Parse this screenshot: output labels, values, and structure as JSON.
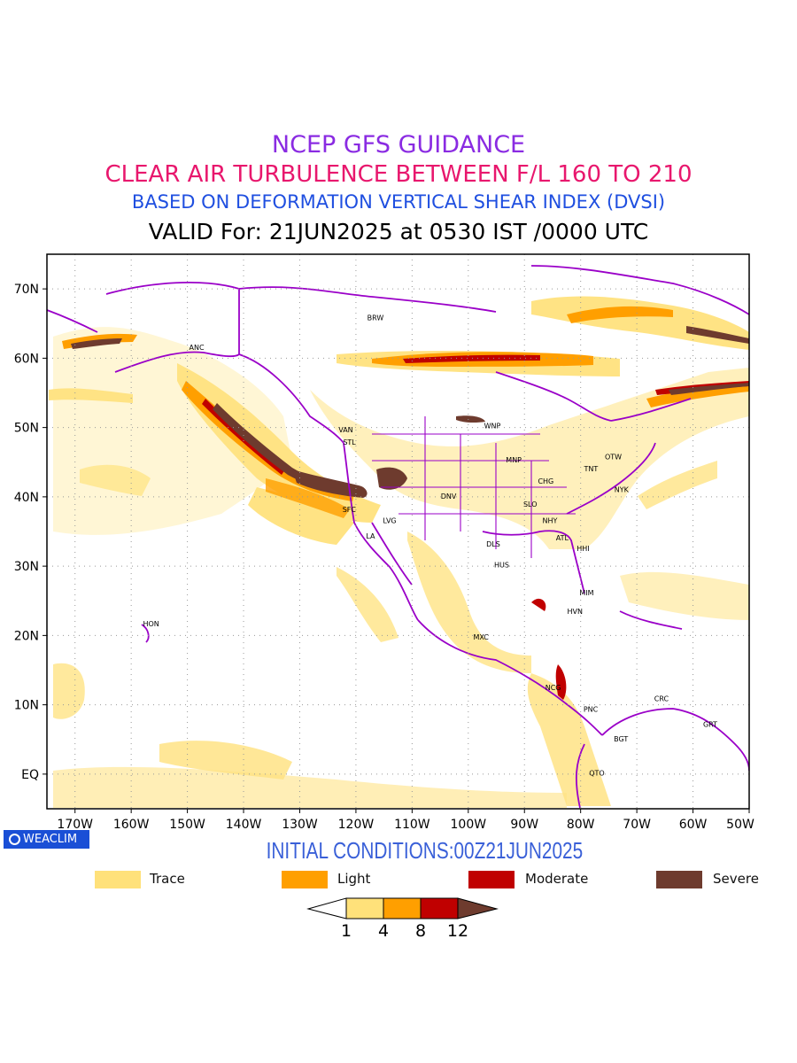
{
  "titles": [
    {
      "text": "NCEP GFS GUIDANCE",
      "color": "#8a2be2"
    },
    {
      "text": "CLEAR AIR TURBULENCE BETWEEN F/L 160 TO 210",
      "color": "#e8176d"
    },
    {
      "text": "BASED ON DEFORMATION VERTICAL SHEAR INDEX (DVSI)",
      "color": "#1f4fe0"
    },
    {
      "text": "VALID For: 21JUN2025 at 0530 IST /0000 UTC",
      "color": "#000000"
    }
  ],
  "map": {
    "lon_range": [
      -175,
      -50
    ],
    "lat_range": [
      -5,
      75
    ],
    "lat_ticks": [
      "70N",
      "60N",
      "50N",
      "40N",
      "30N",
      "20N",
      "10N",
      "EQ"
    ],
    "lat_tick_values": [
      70,
      60,
      50,
      40,
      30,
      20,
      10,
      0
    ],
    "lon_ticks": [
      "170W",
      "160W",
      "150W",
      "140W",
      "130W",
      "120W",
      "110W",
      "100W",
      "90W",
      "80W",
      "70W",
      "60W",
      "50W"
    ],
    "lon_tick_values": [
      -170,
      -160,
      -150,
      -140,
      -130,
      -120,
      -110,
      -100,
      -90,
      -80,
      -70,
      -60,
      -50
    ],
    "grid": true,
    "coast_color": "#9a00c8",
    "stations": [
      {
        "code": "BRW",
        "lon": -118,
        "lat": 65.5
      },
      {
        "code": "ANC",
        "lon": -149.7,
        "lat": 61.2
      },
      {
        "code": "VAN",
        "lon": -123.1,
        "lat": 49.3
      },
      {
        "code": "STL",
        "lon": -122.3,
        "lat": 47.5
      },
      {
        "code": "WNP",
        "lon": -97.2,
        "lat": 49.9
      },
      {
        "code": "MNP",
        "lon": -93.3,
        "lat": 45
      },
      {
        "code": "TNT",
        "lon": -79.4,
        "lat": 43.7
      },
      {
        "code": "OTW",
        "lon": -75.7,
        "lat": 45.4
      },
      {
        "code": "CHG",
        "lon": -87.6,
        "lat": 41.9
      },
      {
        "code": "NYK",
        "lon": -74,
        "lat": 40.7
      },
      {
        "code": "DNV",
        "lon": -104.9,
        "lat": 39.7
      },
      {
        "code": "SFC",
        "lon": -122.4,
        "lat": 37.8
      },
      {
        "code": "SLO",
        "lon": -90.2,
        "lat": 38.6
      },
      {
        "code": "LVG",
        "lon": -115.2,
        "lat": 36.2
      },
      {
        "code": "NHY",
        "lon": -86.8,
        "lat": 36.2
      },
      {
        "code": "LA",
        "lon": -118.2,
        "lat": 34
      },
      {
        "code": "ATL",
        "lon": -84.4,
        "lat": 33.7
      },
      {
        "code": "DLS",
        "lon": -96.8,
        "lat": 32.8
      },
      {
        "code": "HHI",
        "lon": -80.7,
        "lat": 32.2
      },
      {
        "code": "HUS",
        "lon": -95.4,
        "lat": 29.8
      },
      {
        "code": "MIM",
        "lon": -80.2,
        "lat": 25.8
      },
      {
        "code": "HVN",
        "lon": -82.4,
        "lat": 23.1
      },
      {
        "code": "HON",
        "lon": -157.9,
        "lat": 21.3
      },
      {
        "code": "MXC",
        "lon": -99.1,
        "lat": 19.4
      },
      {
        "code": "NCG",
        "lon": -86.3,
        "lat": 12.1
      },
      {
        "code": "CRC",
        "lon": -66.9,
        "lat": 10.5
      },
      {
        "code": "PNC",
        "lon": -79.5,
        "lat": 9
      },
      {
        "code": "GRT",
        "lon": -58.2,
        "lat": 6.8
      },
      {
        "code": "BGT",
        "lon": -74.1,
        "lat": 4.7
      },
      {
        "code": "QTO",
        "lon": -78.5,
        "lat": -0.2
      }
    ]
  },
  "initial_conditions": {
    "text": "INITIAL CONDITIONS:00Z21JUN2025",
    "color": "#3a60d8"
  },
  "logo": {
    "text": "WEACLIM"
  },
  "legend": [
    {
      "label": "Trace",
      "color": "#ffe17a"
    },
    {
      "label": "Light",
      "color": "#ff9f00"
    },
    {
      "label": "Moderate",
      "color": "#c00000"
    },
    {
      "label": "Severe",
      "color": "#6e3b2e"
    }
  ],
  "colorbar": {
    "ticks": [
      "1",
      "4",
      "8",
      "12"
    ],
    "colors": [
      "#ffe17a",
      "#ff9f00",
      "#c00000",
      "#6e3b2e"
    ]
  }
}
